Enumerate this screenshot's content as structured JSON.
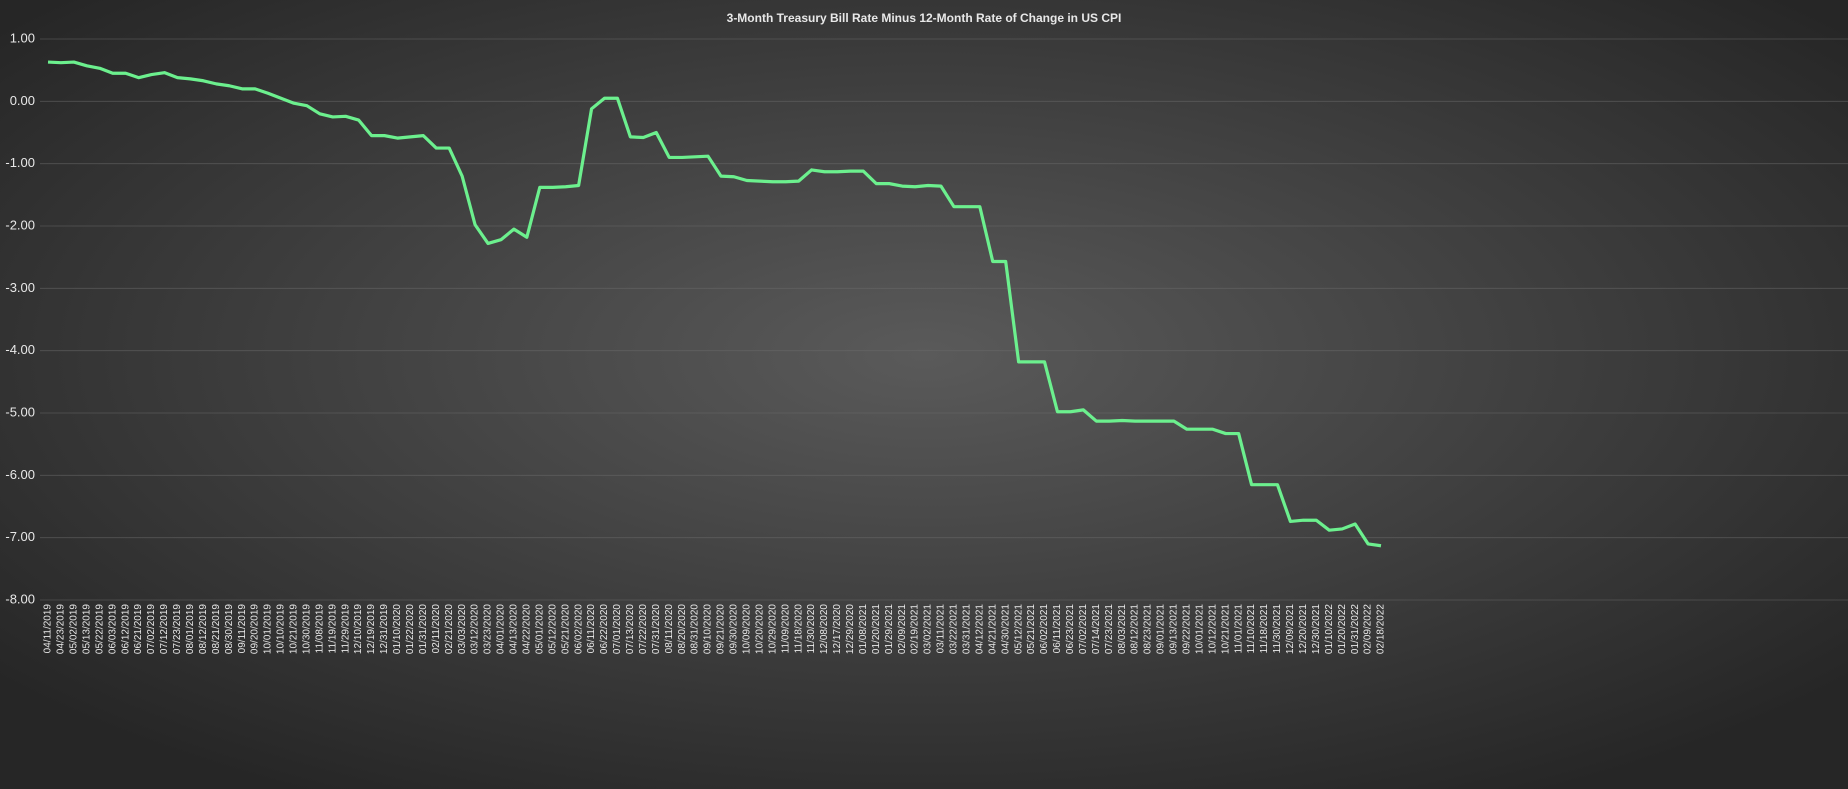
{
  "chart_data": {
    "type": "line",
    "title": "3-Month Treasury Bill Rate Minus 12-Month Rate of Change in US CPI",
    "categories": [
      "04/11/2019",
      "04/23/2019",
      "05/02/2019",
      "05/13/2019",
      "05/22/2019",
      "06/03/2019",
      "06/12/2019",
      "06/21/2019",
      "07/02/2019",
      "07/12/2019",
      "07/23/2019",
      "08/01/2019",
      "08/12/2019",
      "08/21/2019",
      "08/30/2019",
      "09/11/2019",
      "09/20/2019",
      "10/01/2019",
      "10/10/2019",
      "10/21/2019",
      "10/30/2019",
      "11/08/2019",
      "11/19/2019",
      "11/29/2019",
      "12/10/2019",
      "12/19/2019",
      "12/31/2019",
      "01/10/2020",
      "01/22/2020",
      "01/31/2020",
      "02/11/2020",
      "02/21/2020",
      "03/03/2020",
      "03/12/2020",
      "03/23/2020",
      "04/01/2020",
      "04/13/2020",
      "04/22/2020",
      "05/01/2020",
      "05/12/2020",
      "05/21/2020",
      "06/02/2020",
      "06/11/2020",
      "06/22/2020",
      "07/01/2020",
      "07/13/2020",
      "07/22/2020",
      "07/31/2020",
      "08/11/2020",
      "08/20/2020",
      "08/31/2020",
      "09/10/2020",
      "09/21/2020",
      "09/30/2020",
      "10/09/2020",
      "10/20/2020",
      "10/29/2020",
      "11/09/2020",
      "11/18/2020",
      "11/30/2020",
      "12/08/2020",
      "12/17/2020",
      "12/29/2020",
      "01/08/2021",
      "01/20/2021",
      "01/29/2021",
      "02/09/2021",
      "02/19/2021",
      "03/02/2021",
      "03/11/2021",
      "03/22/2021",
      "03/31/2021",
      "04/12/2021",
      "04/21/2021",
      "04/30/2021",
      "05/12/2021",
      "05/21/2021",
      "06/02/2021",
      "06/11/2021",
      "06/23/2021",
      "07/02/2021",
      "07/14/2021",
      "07/23/2021",
      "08/03/2021",
      "08/12/2021",
      "08/23/2021",
      "09/01/2021",
      "09/13/2021",
      "09/22/2021",
      "10/01/2021",
      "10/12/2021",
      "10/21/2021",
      "11/01/2021",
      "11/10/2021",
      "11/18/2021",
      "11/30/2021",
      "12/09/2021",
      "12/20/2021",
      "12/30/2021",
      "01/10/2022",
      "01/20/2022",
      "01/31/2022",
      "02/09/2022",
      "02/18/2022"
    ],
    "values": [
      0.63,
      0.62,
      0.63,
      0.57,
      0.53,
      0.45,
      0.45,
      0.38,
      0.43,
      0.46,
      0.38,
      0.36,
      0.33,
      0.28,
      0.25,
      0.2,
      0.2,
      0.13,
      0.05,
      -0.03,
      -0.07,
      -0.2,
      -0.25,
      -0.24,
      -0.3,
      -0.55,
      -0.55,
      -0.59,
      -0.57,
      -0.55,
      -0.75,
      -0.75,
      -1.2,
      -1.98,
      -2.28,
      -2.22,
      -2.05,
      -2.18,
      -1.38,
      -1.38,
      -1.37,
      -1.35,
      -0.12,
      0.05,
      0.05,
      -0.57,
      -0.58,
      -0.5,
      -0.9,
      -0.9,
      -0.89,
      -0.88,
      -1.2,
      -1.21,
      -1.27,
      -1.28,
      -1.29,
      -1.29,
      -1.28,
      -1.1,
      -1.13,
      -1.13,
      -1.12,
      -1.12,
      -1.32,
      -1.32,
      -1.36,
      -1.37,
      -1.35,
      -1.36,
      -1.69,
      -1.69,
      -1.69,
      -2.57,
      -2.57,
      -4.18,
      -4.18,
      -4.18,
      -4.98,
      -4.98,
      -4.95,
      -5.13,
      -5.13,
      -5.12,
      -5.13,
      -5.13,
      -5.13,
      -5.13,
      -5.26,
      -5.26,
      -5.26,
      -5.33,
      -5.33,
      -6.15,
      -6.15,
      -6.15,
      -6.74,
      -6.72,
      -6.72,
      -6.88,
      -6.86,
      -6.78,
      -7.1,
      -7.13
    ],
    "color": "#6cf08e",
    "ylim": [
      -8,
      1
    ],
    "yticks": [
      {
        "value": -8,
        "label": "-8.00"
      },
      {
        "value": -7,
        "label": "-7.00"
      },
      {
        "value": -6,
        "label": "-6.00"
      },
      {
        "value": -5,
        "label": "-5.00"
      },
      {
        "value": -4,
        "label": "-4.00"
      },
      {
        "value": -3,
        "label": "-3.00"
      },
      {
        "value": -2,
        "label": "-2.00"
      },
      {
        "value": -1,
        "label": "-1.00"
      },
      {
        "value": 0,
        "label": "0.00"
      },
      {
        "value": 1,
        "label": "1.00"
      }
    ],
    "grid": true
  }
}
